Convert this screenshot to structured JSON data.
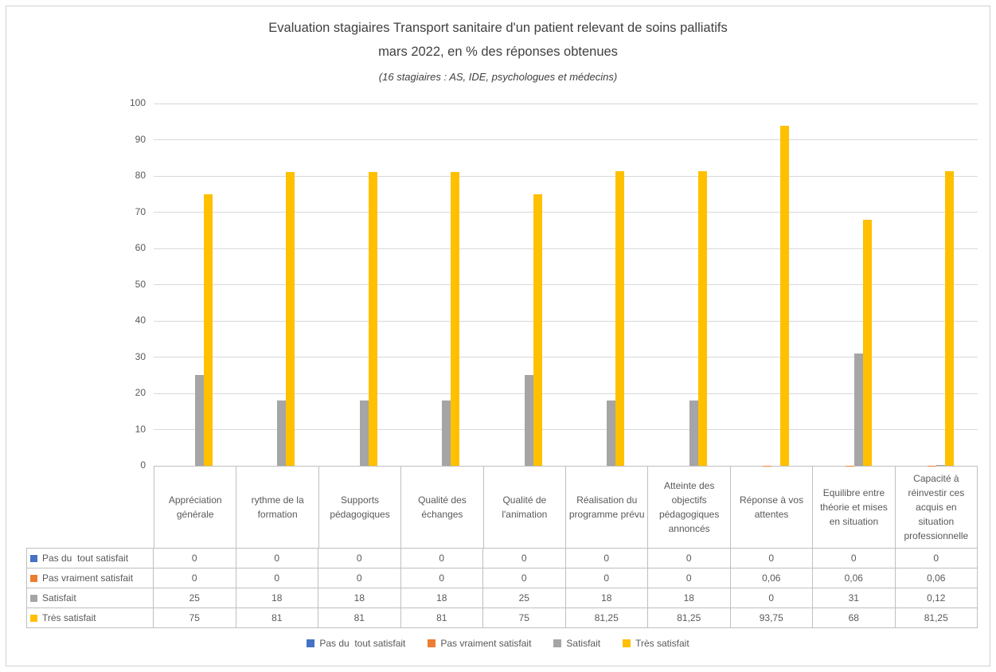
{
  "title": {
    "line1": "Evaluation stagiaires Transport sanitaire d'un patient relevant de soins palliatifs",
    "line2": "mars 2022, en % des réponses obtenues",
    "subtitle": "(16 stagiaires : AS, IDE, psychologues et médecins)"
  },
  "chart_data": {
    "type": "bar",
    "title": "Evaluation stagiaires Transport sanitaire d'un patient relevant de soins palliatifs mars 2022, en % des réponses obtenues",
    "subtitle": "(16 stagiaires : AS, IDE, psychologues et médecins)",
    "xlabel": "",
    "ylabel": "",
    "ylim": [
      0,
      100
    ],
    "ytick_step": 10,
    "grid": true,
    "legend_position": "bottom",
    "categories": [
      "Appréciation générale",
      "rythme de la formation",
      "Supports pédagogiques",
      "Qualité des échanges",
      "Qualité de l'animation",
      "Réalisation du programme prévu",
      "Atteinte des objectifs pédagogiques annoncés",
      "Réponse à vos attentes",
      "Equilibre entre théorie et mises en situation",
      "Capacité à réinvestir ces acquis en situation professionnelle"
    ],
    "series": [
      {
        "name": "Pas du  tout satisfait",
        "color": "#4472C4",
        "values": [
          0,
          0,
          0,
          0,
          0,
          0,
          0,
          0,
          0,
          0
        ],
        "display": [
          "0",
          "0",
          "0",
          "0",
          "0",
          "0",
          "0",
          "0",
          "0",
          "0"
        ]
      },
      {
        "name": "Pas vraiment satisfait",
        "color": "#ED7D31",
        "values": [
          0,
          0,
          0,
          0,
          0,
          0,
          0,
          0.06,
          0.06,
          0.06
        ],
        "display": [
          "0",
          "0",
          "0",
          "0",
          "0",
          "0",
          "0",
          "0,06",
          "0,06",
          "0,06"
        ]
      },
      {
        "name": "Satisfait",
        "color": "#A5A5A5",
        "values": [
          25,
          18,
          18,
          18,
          25,
          18,
          18,
          0,
          31,
          0.12
        ],
        "display": [
          "25",
          "18",
          "18",
          "18",
          "25",
          "18",
          "18",
          "0",
          "31",
          "0,12"
        ]
      },
      {
        "name": "Très satisfait",
        "color": "#FFC000",
        "values": [
          75,
          81,
          81,
          81,
          75,
          81.25,
          81.25,
          93.75,
          68,
          81.25
        ],
        "display": [
          "75",
          "81",
          "81",
          "81",
          "75",
          "81,25",
          "81,25",
          "93,75",
          "68",
          "81,25"
        ]
      }
    ]
  }
}
